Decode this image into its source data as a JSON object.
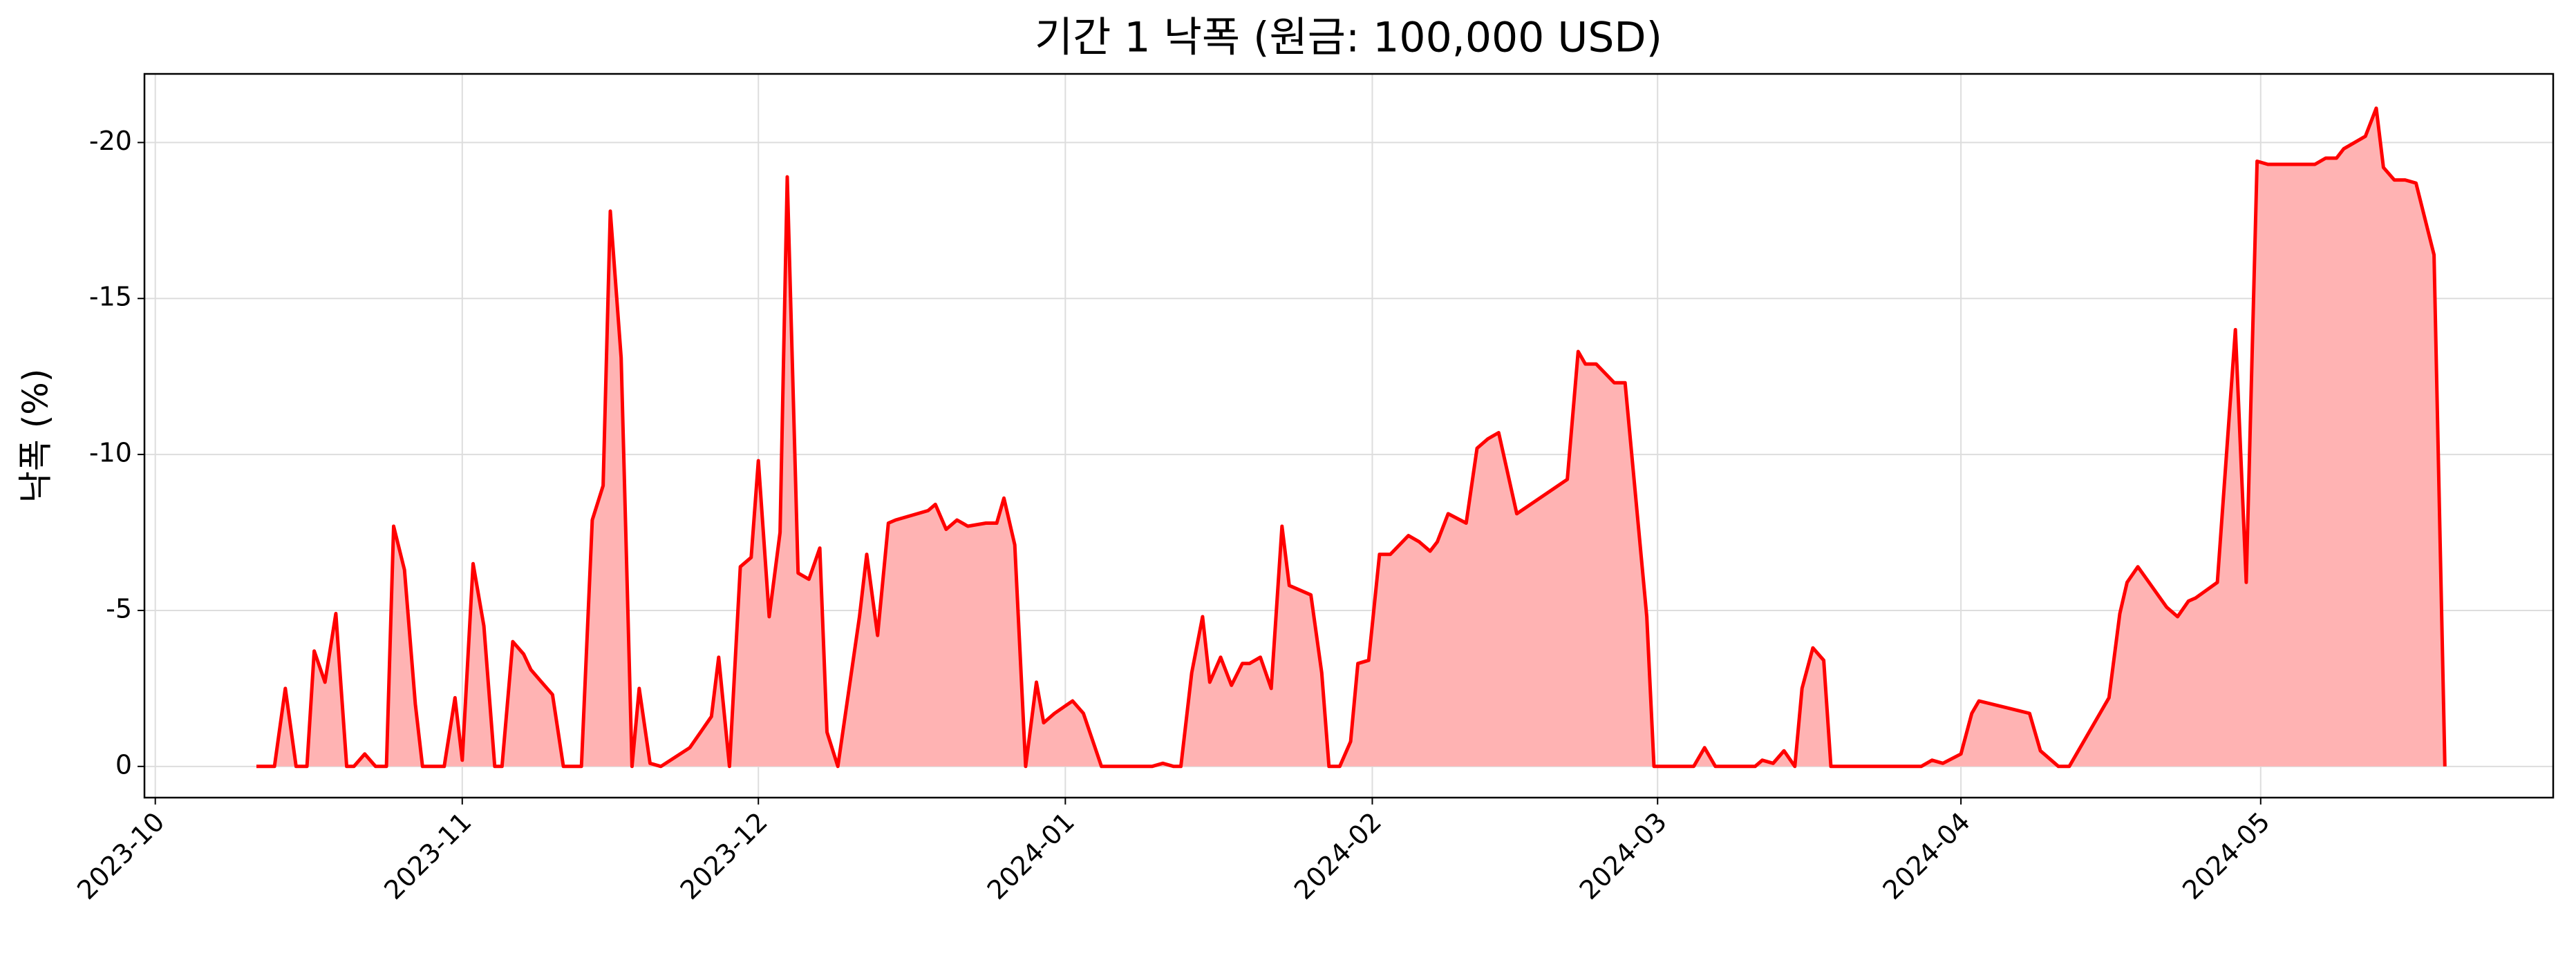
{
  "chart_data": {
    "type": "area",
    "title": "기간 1 낙폭 (원금: 100,000 USD)",
    "ylabel": "낙폭 (%)",
    "color": "#ff0000",
    "fill_color": "#ffb3b3",
    "grid": true,
    "xlim": [
      2023.745,
      2024.412
    ],
    "xticks": [
      {
        "value": 2023.748,
        "label": "2023-10"
      },
      {
        "value": 2023.833,
        "label": "2023-11"
      },
      {
        "value": 2023.915,
        "label": "2023-12"
      },
      {
        "value": 2024.0,
        "label": "2024-01"
      },
      {
        "value": 2024.085,
        "label": "2024-02"
      },
      {
        "value": 2024.164,
        "label": "2024-03"
      },
      {
        "value": 2024.248,
        "label": "2024-04"
      },
      {
        "value": 2024.331,
        "label": "2024-05"
      }
    ],
    "ylim": [
      1,
      -22.2
    ],
    "yticks": [
      0,
      -5,
      -10,
      -15,
      -20
    ],
    "x": [
      2023.776,
      2023.781,
      2023.784,
      2023.787,
      2023.79,
      2023.792,
      2023.795,
      2023.798,
      2023.801,
      2023.803,
      2023.806,
      2023.809,
      2023.812,
      2023.814,
      2023.817,
      2023.82,
      2023.822,
      2023.825,
      2023.828,
      2023.831,
      2023.833,
      2023.836,
      2023.839,
      2023.842,
      2023.844,
      2023.847,
      2023.85,
      2023.852,
      2023.855,
      2023.858,
      2023.861,
      2023.863,
      2023.866,
      2023.869,
      2023.872,
      2023.874,
      2023.877,
      2023.88,
      2023.882,
      2023.885,
      2023.888,
      2023.896,
      2023.902,
      2023.904,
      2023.907,
      2023.91,
      2023.913,
      2023.915,
      2023.918,
      2023.921,
      2023.923,
      2023.926,
      2023.929,
      2023.932,
      2023.934,
      2023.937,
      2023.943,
      2023.945,
      2023.948,
      2023.951,
      2023.953,
      2023.962,
      2023.964,
      2023.967,
      2023.97,
      2023.973,
      2023.978,
      2023.981,
      2023.983,
      2023.986,
      2023.989,
      2023.992,
      2023.994,
      2023.997,
      2024.002,
      2024.005,
      2024.01,
      2024.024,
      2024.027,
      2024.03,
      2024.032,
      2024.035,
      2024.038,
      2024.04,
      2024.043,
      2024.046,
      2024.049,
      2024.051,
      2024.054,
      2024.057,
      2024.06,
      2024.062,
      2024.068,
      2024.071,
      2024.073,
      2024.076,
      2024.079,
      2024.081,
      2024.084,
      2024.087,
      2024.09,
      2024.095,
      2024.098,
      2024.101,
      2024.103,
      2024.106,
      2024.111,
      2024.114,
      2024.117,
      2024.12,
      2024.125,
      2024.139,
      2024.142,
      2024.144,
      2024.147,
      2024.152,
      2024.155,
      2024.161,
      2024.163,
      2024.174,
      2024.177,
      2024.18,
      2024.191,
      2024.193,
      2024.196,
      2024.199,
      2024.202,
      2024.204,
      2024.207,
      2024.21,
      2024.212,
      2024.237,
      2024.24,
      2024.243,
      2024.248,
      2024.251,
      2024.253,
      2024.267,
      2024.27,
      2024.275,
      2024.278,
      2024.289,
      2024.292,
      2024.294,
      2024.297,
      2024.305,
      2024.308,
      2024.311,
      2024.313,
      2024.319,
      2024.324,
      2024.327,
      2024.33,
      2024.333,
      2024.346,
      2024.349,
      2024.352,
      2024.354,
      2024.36,
      2024.363,
      2024.365,
      2024.368,
      2024.371,
      2024.374,
      2024.379,
      2024.382
    ],
    "values": [
      0,
      0,
      -2.5,
      0,
      0,
      -3.7,
      -2.7,
      -4.9,
      0,
      0,
      -0.4,
      0,
      0,
      -7.7,
      -6.3,
      -2.0,
      0,
      0,
      0,
      -2.2,
      -0.2,
      -6.5,
      -4.5,
      0,
      0,
      -4.0,
      -3.6,
      -3.1,
      -2.7,
      -2.3,
      0,
      0,
      0,
      -7.9,
      -9.0,
      -17.8,
      -13.1,
      0,
      -2.5,
      -0.1,
      0,
      -0.6,
      -1.6,
      -3.5,
      0,
      -6.4,
      -6.7,
      -9.8,
      -4.8,
      -7.5,
      -18.9,
      -6.2,
      -6.0,
      -7.0,
      -1.1,
      0,
      -4.8,
      -6.8,
      -4.2,
      -7.8,
      -7.9,
      -8.2,
      -8.4,
      -7.6,
      -7.9,
      -7.7,
      -7.8,
      -7.8,
      -8.6,
      -7.1,
      0,
      -2.7,
      -1.4,
      -1.7,
      -2.1,
      -1.7,
      0,
      0,
      -0.1,
      0,
      0,
      -3.0,
      -4.8,
      -2.7,
      -3.5,
      -2.6,
      -3.3,
      -3.3,
      -3.5,
      -2.5,
      -7.7,
      -5.8,
      -5.5,
      -3.0,
      0,
      0,
      -0.8,
      -3.3,
      -3.4,
      -6.8,
      -6.8,
      -7.4,
      -7.2,
      -6.9,
      -7.2,
      -8.1,
      -7.8,
      -10.2,
      -10.5,
      -10.7,
      -8.1,
      -9.2,
      -13.3,
      -12.9,
      -12.9,
      -12.3,
      -12.3,
      -4.8,
      0,
      0,
      -0.6,
      0,
      0,
      -0.2,
      -0.1,
      -0.5,
      0,
      -2.5,
      -3.8,
      -3.4,
      0,
      0,
      -0.2,
      -0.1,
      -0.4,
      -1.7,
      -2.1,
      -1.7,
      -0.5,
      0,
      0,
      -2.2,
      -4.9,
      -5.9,
      -6.4,
      -5.1,
      -4.8,
      -5.3,
      -5.4,
      -5.9,
      -14.0,
      -5.9,
      -19.4,
      -19.3,
      -19.3,
      -19.5,
      -19.5,
      -19.8,
      -20.2,
      -21.1,
      -19.2,
      -18.8,
      -18.8,
      -18.7,
      -16.4,
      0
    ]
  }
}
